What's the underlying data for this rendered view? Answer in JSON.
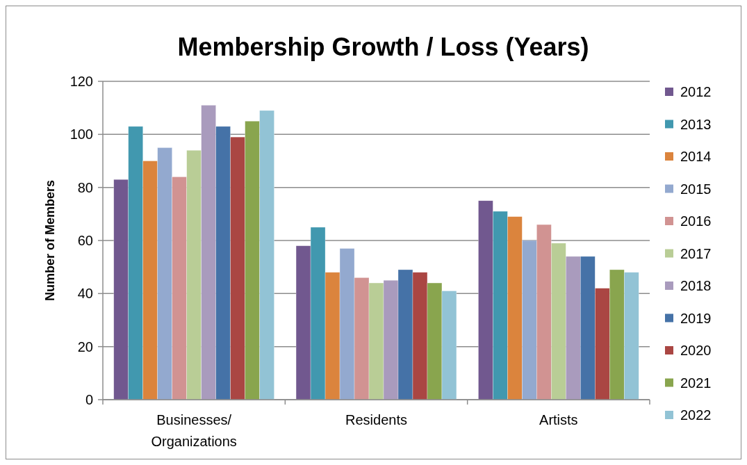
{
  "chart_data": {
    "type": "bar",
    "title": "Membership Growth / Loss (Years)",
    "ylabel": "Number of Members",
    "categories": [
      "Businesses/ Organizations",
      "Residents",
      "Artists"
    ],
    "series": [
      {
        "name": "2012",
        "color": "#71588f",
        "values": [
          83,
          58,
          75
        ]
      },
      {
        "name": "2013",
        "color": "#4198af",
        "values": [
          103,
          65,
          71
        ]
      },
      {
        "name": "2014",
        "color": "#db843d",
        "values": [
          90,
          48,
          69
        ]
      },
      {
        "name": "2015",
        "color": "#93a9cf",
        "values": [
          95,
          57,
          60
        ]
      },
      {
        "name": "2016",
        "color": "#d19392",
        "values": [
          84,
          46,
          66
        ]
      },
      {
        "name": "2017",
        "color": "#b9cd96",
        "values": [
          94,
          44,
          59
        ]
      },
      {
        "name": "2018",
        "color": "#a99bbd",
        "values": [
          111,
          45,
          54
        ]
      },
      {
        "name": "2019",
        "color": "#4572a7",
        "values": [
          103,
          49,
          54
        ]
      },
      {
        "name": "2020",
        "color": "#aa4643",
        "values": [
          99,
          48,
          42
        ]
      },
      {
        "name": "2021",
        "color": "#89a54e",
        "values": [
          105,
          44,
          49
        ]
      },
      {
        "name": "2022",
        "color": "#92c3d5",
        "values": [
          109,
          41,
          48
        ]
      }
    ],
    "ylim": [
      0,
      120
    ],
    "yticks": [
      0,
      20,
      40,
      60,
      80,
      100,
      120
    ],
    "grid": "y",
    "legend": "right"
  }
}
